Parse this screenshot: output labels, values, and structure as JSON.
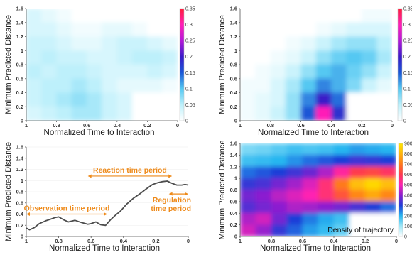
{
  "chart_data": [
    {
      "type": "heatmap",
      "panel": "top-left",
      "xlabel": "Normalized Time to Interaction",
      "ylabel": "Minimum Predicted Distance",
      "x_ticks": [
        "1",
        "0.8",
        "0.6",
        "0.4",
        "0.2",
        "0"
      ],
      "y_ticks": [
        "0",
        "0.2",
        "0.4",
        "0.6",
        "0.8",
        "1",
        "1.2",
        "1.4",
        "1.6"
      ],
      "xlim": [
        1,
        0
      ],
      "ylim": [
        0,
        1.6
      ],
      "colorbar": {
        "ticks": [
          "0",
          "0.05",
          "0.1",
          "0.15",
          "0.2",
          "0.25",
          "0.3",
          "0.35"
        ],
        "range": [
          0,
          0.35
        ],
        "colors": [
          "#ffffff",
          "#bdf0fb",
          "#55c8f2",
          "#1a57d6",
          "#3a1bc8",
          "#b41ad8",
          "#ff1fb7",
          "#ff1e3a"
        ]
      },
      "grid": {
        "x_centers": [
          0.95,
          0.85,
          0.75,
          0.65,
          0.55,
          0.45,
          0.35,
          0.25,
          0.15,
          0.05
        ],
        "y_centers": [
          1.5,
          1.3,
          1.1,
          0.9,
          0.7,
          0.5,
          0.3,
          0.1
        ],
        "values": [
          [
            0.03,
            0.02,
            0.01,
            0,
            0,
            0,
            0,
            0,
            0,
            0
          ],
          [
            0.03,
            0.03,
            0.02,
            0.01,
            0.01,
            0.02,
            0.02,
            0.01,
            0,
            0
          ],
          [
            0.04,
            0.04,
            0.03,
            0.02,
            0.02,
            0.03,
            0.04,
            0.04,
            0.03,
            0.02
          ],
          [
            0.04,
            0.05,
            0.04,
            0.04,
            0.03,
            0.03,
            0.04,
            0.05,
            0.05,
            0.04
          ],
          [
            0.05,
            0.04,
            0.05,
            0.05,
            0.04,
            0.03,
            0.03,
            0.03,
            0.04,
            0.03
          ],
          [
            0.04,
            0.05,
            0.05,
            0.06,
            0.05,
            0.03,
            0.02,
            0.02,
            0.02,
            0.01
          ],
          [
            0.04,
            0.05,
            0.06,
            0.07,
            0.06,
            0.04,
            0.03,
            0,
            0,
            0
          ],
          [
            0.03,
            0.04,
            0.05,
            0.06,
            0.06,
            0.04,
            0.03,
            0,
            0,
            0
          ]
        ]
      }
    },
    {
      "type": "heatmap",
      "panel": "top-right",
      "xlabel": "Normalized Time to Interaction",
      "ylabel": "Minimum Predicted Distance",
      "x_ticks": [
        "1",
        "0.8",
        "0.6",
        "0.4",
        "0.2",
        "0"
      ],
      "y_ticks": [
        "0",
        "0.2",
        "0.4",
        "0.6",
        "0.8",
        "1",
        "1.2",
        "1.4",
        "1.6"
      ],
      "xlim": [
        1,
        0
      ],
      "ylim": [
        0,
        1.6
      ],
      "colorbar": {
        "ticks": [
          "0",
          "0.05",
          "0.1",
          "0.15",
          "0.2",
          "0.25",
          "0.3",
          "0.35"
        ],
        "range": [
          0,
          0.35
        ],
        "colors": [
          "#ffffff",
          "#bdf0fb",
          "#55c8f2",
          "#1a57d6",
          "#3a1bc8",
          "#b41ad8",
          "#ff1fb7",
          "#ff1e3a"
        ]
      },
      "grid": {
        "x_centers": [
          0.95,
          0.85,
          0.75,
          0.65,
          0.55,
          0.45,
          0.35,
          0.25,
          0.15,
          0.05
        ],
        "y_centers": [
          1.5,
          1.3,
          1.1,
          0.9,
          0.7,
          0.5,
          0.3,
          0.1
        ],
        "values": [
          [
            0,
            0,
            0,
            0,
            0,
            0,
            0,
            0,
            0.01,
            0.01
          ],
          [
            0,
            0,
            0,
            0,
            0,
            0.01,
            0.02,
            0.03,
            0.03,
            0.03
          ],
          [
            0,
            0,
            0,
            0.01,
            0.02,
            0.04,
            0.06,
            0.07,
            0.07,
            0.05
          ],
          [
            0,
            0,
            0.01,
            0.02,
            0.04,
            0.07,
            0.09,
            0.1,
            0.09,
            0.06
          ],
          [
            0,
            0.01,
            0.02,
            0.04,
            0.07,
            0.1,
            0.11,
            0.09,
            0.07,
            0.04
          ],
          [
            0.01,
            0.01,
            0.03,
            0.06,
            0.1,
            0.13,
            0.11,
            0.08,
            0.04,
            0.02
          ],
          [
            0.01,
            0.02,
            0.03,
            0.07,
            0.13,
            0.2,
            0.14,
            0,
            0,
            0
          ],
          [
            0.01,
            0.02,
            0.04,
            0.07,
            0.15,
            0.3,
            0.18,
            0,
            0,
            0
          ]
        ]
      }
    },
    {
      "type": "line",
      "panel": "bottom-left",
      "xlabel": "Normalized Time to Interaction",
      "ylabel": "Minimum Predicted Distance",
      "x_ticks": [
        "1",
        "0.8",
        "0.6",
        "0.4",
        "0.2",
        "0"
      ],
      "y_ticks": [
        "0",
        "0.2",
        "0.4",
        "0.6",
        "0.8",
        "1",
        "1.2",
        "1.4",
        "1.6"
      ],
      "xlim": [
        1,
        0
      ],
      "ylim": [
        0,
        1.6
      ],
      "series": [
        {
          "x": [
            1.0,
            0.98,
            0.95,
            0.92,
            0.88,
            0.85,
            0.82,
            0.8,
            0.77,
            0.74,
            0.7,
            0.66,
            0.62,
            0.6,
            0.57,
            0.54,
            0.51,
            0.48,
            0.45,
            0.42,
            0.38,
            0.34,
            0.3,
            0.26,
            0.22,
            0.19,
            0.16,
            0.13,
            0.1,
            0.07,
            0.04,
            0.02,
            0.0
          ],
          "y": [
            0.15,
            0.12,
            0.16,
            0.23,
            0.28,
            0.31,
            0.34,
            0.35,
            0.3,
            0.26,
            0.29,
            0.25,
            0.22,
            0.23,
            0.26,
            0.21,
            0.2,
            0.3,
            0.38,
            0.45,
            0.58,
            0.68,
            0.76,
            0.85,
            0.93,
            0.96,
            0.98,
            0.99,
            0.95,
            0.92,
            0.92,
            0.93,
            0.92
          ]
        }
      ],
      "annotations": [
        {
          "label_lines": [
            "Reaction time period"
          ],
          "x_range": [
            0.62,
            0.1
          ],
          "at_y": 1.08
        },
        {
          "label_lines": [
            "Observation time period"
          ],
          "x_range": [
            1.0,
            0.5
          ],
          "at_y": 0.4
        },
        {
          "label_lines": [
            "Regulation",
            "time period"
          ],
          "x_range": [
            0.12,
            0.0
          ],
          "at_y": 0.76
        }
      ],
      "annotation_color": "#ee8a1a"
    },
    {
      "type": "heatmap",
      "panel": "bottom-right",
      "xlabel": "Normalized Time to Interaction",
      "ylabel": "Minimum Predicted Distance",
      "x_ticks": [
        "1",
        "0.8",
        "0.6",
        "0.4",
        "0.2",
        "0"
      ],
      "y_ticks": [
        "0",
        "0.2",
        "0.4",
        "0.6",
        "0.8",
        "1",
        "1.2",
        "1.4",
        "1.6"
      ],
      "xlim": [
        1,
        0
      ],
      "ylim": [
        0,
        1.6
      ],
      "inset_label": "Density of trajectory",
      "colorbar": {
        "ticks": [
          "0",
          "100",
          "200",
          "300",
          "400",
          "500",
          "600",
          "700",
          "800",
          "900"
        ],
        "range": [
          0,
          900
        ],
        "colors": [
          "#ffffff",
          "#9fe7f7",
          "#28b6f0",
          "#1f3ed8",
          "#8b1fd0",
          "#ff24b2",
          "#ff3a4e",
          "#ff7a1c",
          "#ffb40b",
          "#ffe600"
        ]
      },
      "grid": {
        "x_centers": [
          0.95,
          0.85,
          0.75,
          0.65,
          0.55,
          0.45,
          0.35,
          0.25,
          0.15,
          0.05
        ],
        "y_centers": [
          1.5,
          1.3,
          1.1,
          0.9,
          0.7,
          0.5,
          0.3,
          0.1
        ],
        "values": [
          [
            130,
            140,
            160,
            180,
            170,
            180,
            200,
            220,
            210,
            200
          ],
          [
            180,
            190,
            200,
            230,
            260,
            280,
            300,
            330,
            320,
            300
          ],
          [
            260,
            280,
            300,
            330,
            370,
            430,
            520,
            600,
            620,
            580
          ],
          [
            320,
            340,
            380,
            420,
            470,
            560,
            700,
            820,
            870,
            820
          ],
          [
            380,
            400,
            440,
            470,
            500,
            560,
            640,
            720,
            780,
            720
          ],
          [
            350,
            380,
            400,
            430,
            420,
            400,
            380,
            340,
            300,
            260
          ],
          [
            430,
            460,
            380,
            300,
            250,
            210,
            180,
            0,
            0,
            0
          ],
          [
            460,
            410,
            320,
            270,
            220,
            190,
            150,
            0,
            0,
            0
          ]
        ]
      }
    }
  ]
}
